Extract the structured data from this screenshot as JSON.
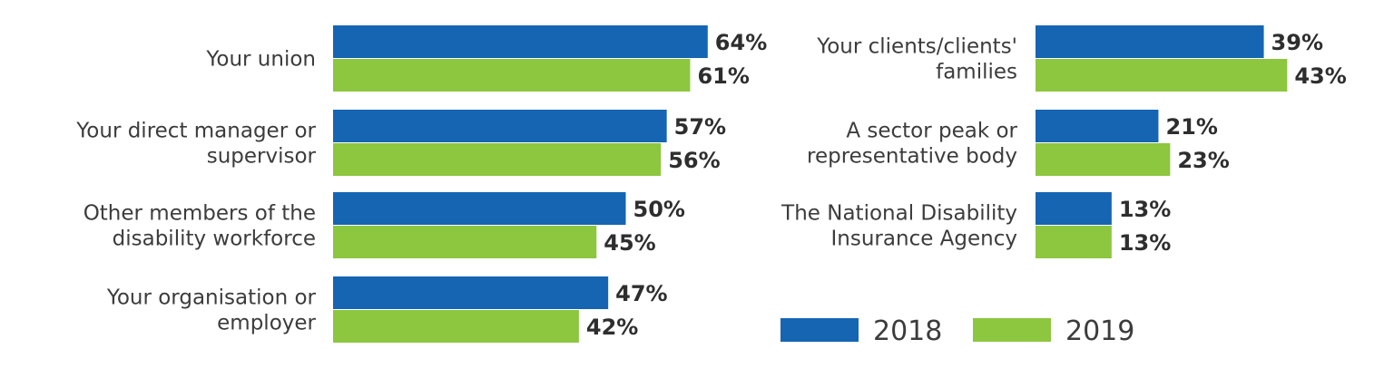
{
  "chart_data": [
    {
      "type": "bar",
      "orientation": "horizontal",
      "categories": [
        [
          "Your union"
        ],
        [
          "Your direct manager or",
          "supervisor"
        ],
        [
          "Other members of the",
          "disability workforce"
        ],
        [
          "Your organisation or",
          "employer"
        ]
      ],
      "series": [
        {
          "name": "2018",
          "values": [
            64,
            57,
            50,
            47
          ],
          "labels": [
            "64%",
            "57%",
            "50%",
            "47%"
          ]
        },
        {
          "name": "2019",
          "values": [
            61,
            56,
            45,
            42
          ],
          "labels": [
            "61%",
            "56%",
            "45%",
            "42%"
          ]
        }
      ],
      "xlim": [
        0,
        100
      ],
      "grid": false
    },
    {
      "type": "bar",
      "orientation": "horizontal",
      "categories": [
        [
          "Your clients/clients'",
          "families"
        ],
        [
          "A sector peak or",
          "representative body"
        ],
        [
          "The National Disability",
          "Insurance Agency"
        ]
      ],
      "series": [
        {
          "name": "2018",
          "values": [
            39,
            21,
            13
          ],
          "labels": [
            "39%",
            "21%",
            "13%"
          ]
        },
        {
          "name": "2019",
          "values": [
            43,
            23,
            13
          ],
          "labels": [
            "43%",
            "23%",
            "13%"
          ]
        }
      ],
      "xlim": [
        0,
        100
      ],
      "grid": false
    }
  ],
  "legend": {
    "placement": "bottom-right",
    "items": [
      {
        "label": "2018",
        "color": "#1565b3"
      },
      {
        "label": "2019",
        "color": "#8dc63f"
      }
    ]
  },
  "colors": {
    "series_2018": "#1565b3",
    "series_2019": "#8dc63f"
  }
}
